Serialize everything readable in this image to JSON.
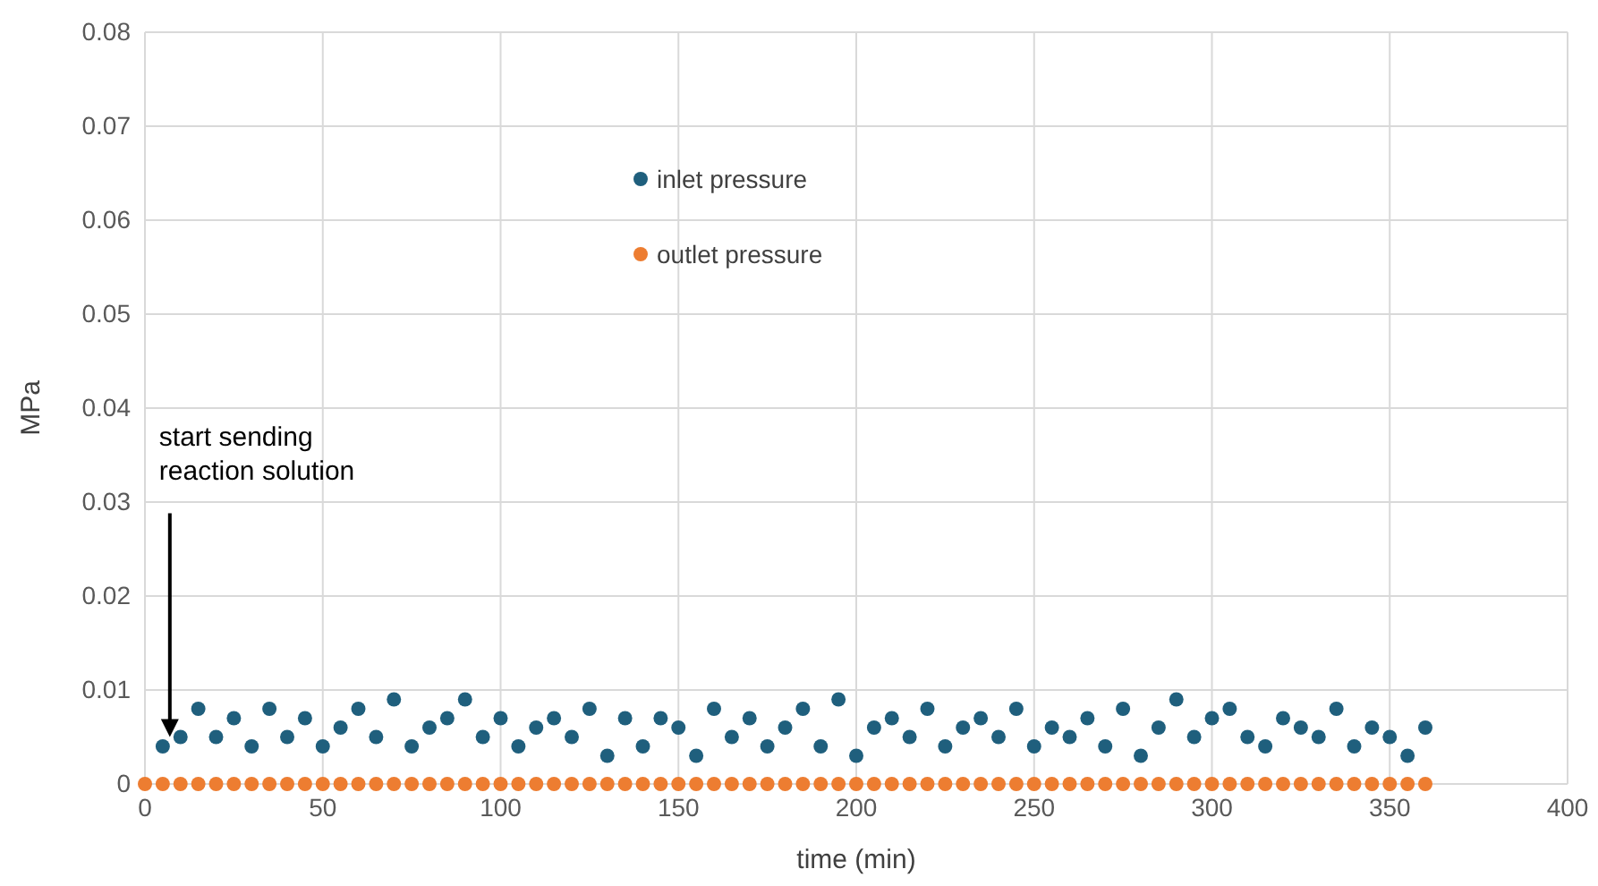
{
  "chart_data": {
    "type": "scatter",
    "xlabel": "time (min)",
    "ylabel": "MPa",
    "xlim": [
      0,
      400
    ],
    "xticks": [
      0,
      50,
      100,
      150,
      200,
      250,
      300,
      350,
      400
    ],
    "ylim": [
      0,
      0.08
    ],
    "yticks": [
      0,
      0.01,
      0.02,
      0.03,
      0.04,
      0.05,
      0.06,
      0.07,
      0.08
    ],
    "grid": true,
    "legend": "top left",
    "marker": "circle",
    "annotations": [
      {
        "text": "start sending\nreaction solution",
        "x": 7,
        "y": 0.005
      }
    ],
    "series": [
      {
        "name": "inlet pressure",
        "color": "#1f5f7d",
        "x": [
          5,
          10,
          15,
          20,
          25,
          30,
          35,
          40,
          45,
          50,
          55,
          60,
          65,
          70,
          75,
          80,
          85,
          90,
          95,
          100,
          105,
          110,
          115,
          120,
          125,
          130,
          135,
          140,
          145,
          150,
          155,
          160,
          165,
          170,
          175,
          180,
          185,
          190,
          195,
          200,
          205,
          210,
          215,
          220,
          225,
          230,
          235,
          240,
          245,
          250,
          255,
          260,
          265,
          270,
          275,
          280,
          285,
          290,
          295,
          300,
          305,
          310,
          315,
          320,
          325,
          330,
          335,
          340,
          345,
          350,
          355,
          360
        ],
        "values": [
          0.004,
          0.005,
          0.008,
          0.005,
          0.007,
          0.004,
          0.008,
          0.005,
          0.007,
          0.004,
          0.006,
          0.008,
          0.005,
          0.009,
          0.004,
          0.006,
          0.007,
          0.009,
          0.005,
          0.007,
          0.004,
          0.006,
          0.007,
          0.005,
          0.008,
          0.003,
          0.007,
          0.004,
          0.007,
          0.006,
          0.003,
          0.008,
          0.005,
          0.007,
          0.004,
          0.006,
          0.008,
          0.004,
          0.009,
          0.003,
          0.006,
          0.007,
          0.005,
          0.008,
          0.004,
          0.006,
          0.007,
          0.005,
          0.008,
          0.004,
          0.006,
          0.005,
          0.007,
          0.004,
          0.008,
          0.003,
          0.006,
          0.009,
          0.005,
          0.007,
          0.008,
          0.005,
          0.004,
          0.007,
          0.006,
          0.005,
          0.008,
          0.004,
          0.006,
          0.005,
          0.003,
          0.006
        ]
      },
      {
        "name": "outlet pressure",
        "color": "#ed7d31",
        "x": [
          0,
          5,
          10,
          15,
          20,
          25,
          30,
          35,
          40,
          45,
          50,
          55,
          60,
          65,
          70,
          75,
          80,
          85,
          90,
          95,
          100,
          105,
          110,
          115,
          120,
          125,
          130,
          135,
          140,
          145,
          150,
          155,
          160,
          165,
          170,
          175,
          180,
          185,
          190,
          195,
          200,
          205,
          210,
          215,
          220,
          225,
          230,
          235,
          240,
          245,
          250,
          255,
          260,
          265,
          270,
          275,
          280,
          285,
          290,
          295,
          300,
          305,
          310,
          315,
          320,
          325,
          330,
          335,
          340,
          345,
          350,
          355,
          360
        ],
        "values": [
          0,
          0,
          0,
          0,
          0,
          0,
          0,
          0,
          0,
          0,
          0,
          0,
          0,
          0,
          0,
          0,
          0,
          0,
          0,
          0,
          0,
          0,
          0,
          0,
          0,
          0,
          0,
          0,
          0,
          0,
          0,
          0,
          0,
          0,
          0,
          0,
          0,
          0,
          0,
          0,
          0,
          0,
          0,
          0,
          0,
          0,
          0,
          0,
          0,
          0,
          0,
          0,
          0,
          0,
          0,
          0,
          0,
          0,
          0,
          0,
          0,
          0,
          0,
          0,
          0,
          0,
          0,
          0,
          0,
          0,
          0,
          0,
          0
        ]
      }
    ]
  }
}
